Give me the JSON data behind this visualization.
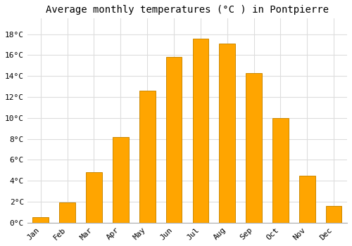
{
  "title": "Average monthly temperatures (°C ) in Pontpierre",
  "months": [
    "Jan",
    "Feb",
    "Mar",
    "Apr",
    "May",
    "Jun",
    "Jul",
    "Aug",
    "Sep",
    "Oct",
    "Nov",
    "Dec"
  ],
  "temperatures": [
    0.5,
    1.9,
    4.8,
    8.2,
    12.6,
    15.8,
    17.6,
    17.1,
    14.3,
    10.0,
    4.5,
    1.6
  ],
  "bar_color": "#FFA500",
  "bar_edge_color": "#CC8800",
  "background_color": "#FFFFFF",
  "plot_bg_color": "#FFFFFF",
  "grid_color": "#DDDDDD",
  "ylim": [
    0,
    19.5
  ],
  "yticks": [
    0,
    2,
    4,
    6,
    8,
    10,
    12,
    14,
    16,
    18
  ],
  "ytick_labels": [
    "0°C",
    "2°C",
    "4°C",
    "6°C",
    "8°C",
    "10°C",
    "12°C",
    "14°C",
    "16°C",
    "18°C"
  ],
  "title_fontsize": 10,
  "tick_fontsize": 8,
  "bar_width": 0.6
}
